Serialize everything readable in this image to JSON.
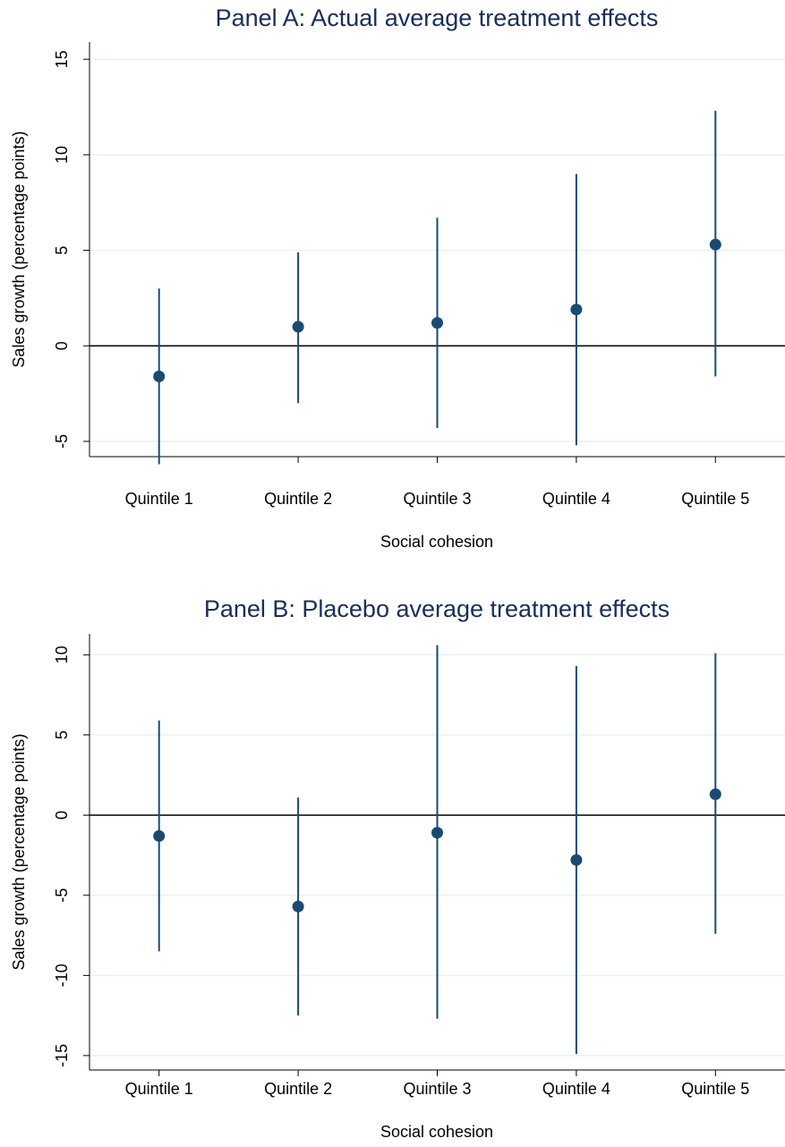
{
  "chart_data": [
    {
      "type": "errorpoint",
      "title": "Panel A: Actual average treatment effects",
      "x_label": "Social cohesion",
      "y_label": "Sales growth (percentage points)",
      "categories": [
        "Quintile 1",
        "Quintile 2",
        "Quintile 3",
        "Quintile 4",
        "Quintile 5"
      ],
      "series": [
        {
          "color": "#1a4a72",
          "values": [
            -1.6,
            1.0,
            1.2,
            1.9,
            5.3
          ],
          "ci_low": [
            -6.2,
            -3.0,
            -4.3,
            -5.2,
            -1.6
          ],
          "ci_high": [
            3.0,
            4.9,
            6.7,
            9.0,
            12.3
          ]
        }
      ],
      "ylim": [
        -5.8,
        15.9
      ],
      "yticks": [
        -5,
        0,
        5,
        10,
        15
      ],
      "grid": true,
      "zero_line": true
    },
    {
      "type": "errorpoint",
      "title": "Panel B: Placebo average treatment effects",
      "x_label": "Social cohesion",
      "y_label": "Sales growth (percentage points)",
      "categories": [
        "Quintile 1",
        "Quintile 2",
        "Quintile 3",
        "Quintile 4",
        "Quintile 5"
      ],
      "series": [
        {
          "color": "#1a4a72",
          "values": [
            -1.3,
            -5.7,
            -1.1,
            -2.8,
            1.3
          ],
          "ci_low": [
            -8.5,
            -12.5,
            -12.7,
            -14.9,
            -7.4
          ],
          "ci_high": [
            5.9,
            1.1,
            10.6,
            9.3,
            10.1
          ]
        }
      ],
      "ylim": [
        -15.9,
        11.3
      ],
      "yticks": [
        -15,
        -10,
        -5,
        0,
        5,
        10
      ],
      "grid": true,
      "zero_line": true
    }
  ]
}
